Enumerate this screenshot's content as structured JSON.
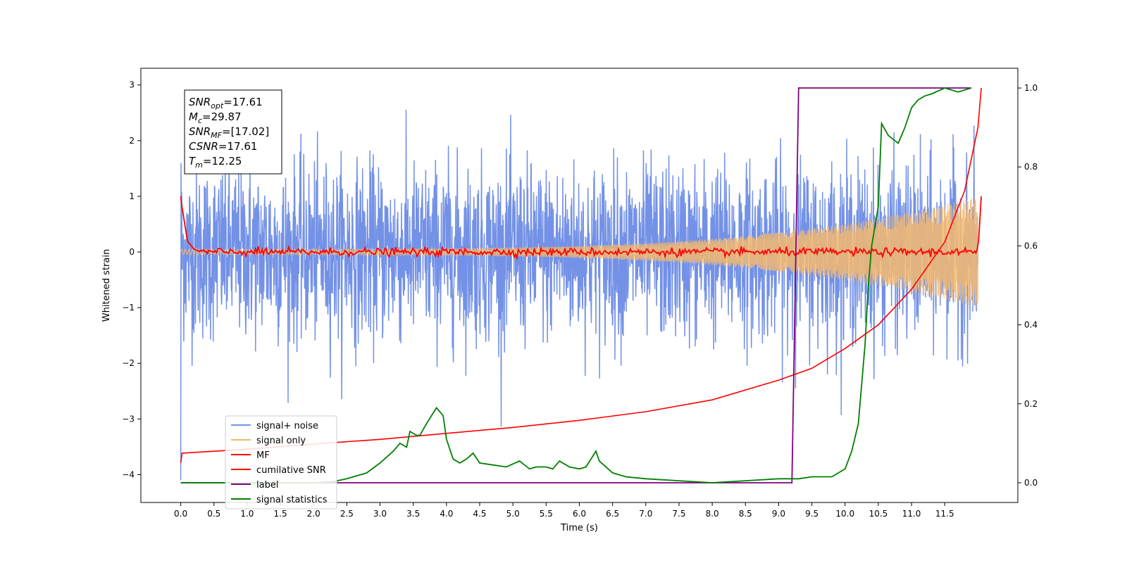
{
  "chart_data": {
    "type": "line",
    "xlabel": "Time (s)",
    "ylabel": "Whitened strain",
    "xlim": [
      -0.6,
      12.6
    ],
    "ylim": [
      -4.5,
      3.3
    ],
    "y2lim": [
      -0.05,
      1.05
    ],
    "x_ticks": [
      "0.0",
      "0.5",
      "1.0",
      "1.5",
      "2.0",
      "2.5",
      "3.0",
      "3.5",
      "4.0",
      "4.5",
      "5.0",
      "5.5",
      "6.0",
      "6.5",
      "7.0",
      "7.5",
      "8.0",
      "8.5",
      "9.0",
      "9.5",
      "10.0",
      "10.5",
      "11.0",
      "11.5"
    ],
    "x_tick_values": [
      0,
      0.5,
      1,
      1.5,
      2,
      2.5,
      3,
      3.5,
      4,
      4.5,
      5,
      5.5,
      6,
      6.5,
      7,
      7.5,
      8,
      8.5,
      9,
      9.5,
      10,
      10.5,
      11,
      11.5
    ],
    "y_ticks": [
      "3",
      "2",
      "1",
      "0",
      "−1",
      "−2",
      "−3",
      "−4"
    ],
    "y_tick_values": [
      3,
      2,
      1,
      0,
      -1,
      -2,
      -3,
      -4
    ],
    "y2_ticks": [
      "1.0",
      "0.8",
      "0.6",
      "0.4",
      "0.2",
      "0.0"
    ],
    "y2_tick_values": [
      1.0,
      0.8,
      0.6,
      0.4,
      0.2,
      0.0
    ],
    "grid": false,
    "legend_placement": "lower-left",
    "annotation_box": {
      "lines": [
        {
          "sym": "SNR",
          "sub": "opt",
          "value": "=17.61"
        },
        {
          "sym": "M",
          "sub": "c",
          "value": "=29.87"
        },
        {
          "sym": "SNR",
          "sub": "MF",
          "value": "=[17.02]"
        },
        {
          "sym": "CSNR",
          "sub": "",
          "value": "=17.61"
        },
        {
          "sym": "T",
          "sub": "m",
          "value": "=12.25"
        }
      ]
    },
    "series": [
      {
        "name": "signal+ noise",
        "axis": "left",
        "color": "#7391e6",
        "description_amplitude": 1.3,
        "x_range": [
          0,
          12
        ]
      },
      {
        "name": "signal only",
        "axis": "left",
        "color": "#f5b96e",
        "x_range": [
          0,
          12
        ],
        "start_amplitude": 0.05,
        "end_amplitude": 1.0
      },
      {
        "name": "MF",
        "axis": "left",
        "color": "#ff0000",
        "x": [
          0,
          0.02,
          0.1,
          0.2,
          0.3,
          12.0,
          12.05
        ],
        "y": [
          1.0,
          0.8,
          0.2,
          0.05,
          0.0,
          0.0,
          1.0
        ]
      },
      {
        "name": "cumilative SNR",
        "axis": "right",
        "color": "#ff0000",
        "x": [
          0,
          0.02,
          1,
          2,
          3,
          4,
          5,
          6,
          7,
          8,
          9,
          9.5,
          10,
          10.5,
          11,
          11.5,
          11.8,
          12.0,
          12.05
        ],
        "y": [
          0.05,
          0.075,
          0.085,
          0.098,
          0.11,
          0.125,
          0.14,
          0.158,
          0.18,
          0.21,
          0.26,
          0.29,
          0.34,
          0.4,
          0.49,
          0.61,
          0.74,
          0.9,
          1.0
        ]
      },
      {
        "name": "label",
        "axis": "right",
        "color": "#800080",
        "x": [
          0,
          9.2,
          9.3,
          11.9
        ],
        "y": [
          0.0,
          0.0,
          1.0,
          1.0
        ]
      },
      {
        "name": "signal statistics",
        "axis": "right",
        "color": "#008000",
        "x": [
          0,
          0.5,
          1,
          1.5,
          2,
          2.3,
          2.5,
          2.8,
          3.0,
          3.2,
          3.3,
          3.4,
          3.45,
          3.55,
          3.6,
          3.7,
          3.85,
          3.95,
          4.0,
          4.1,
          4.2,
          4.3,
          4.4,
          4.5,
          4.7,
          4.9,
          5.1,
          5.25,
          5.35,
          5.5,
          5.6,
          5.7,
          5.85,
          6.0,
          6.1,
          6.25,
          6.3,
          6.5,
          6.7,
          7.0,
          7.5,
          8.0,
          8.5,
          9.0,
          9.3,
          9.5,
          9.8,
          10.0,
          10.1,
          10.2,
          10.3,
          10.35,
          10.4,
          10.5,
          10.55,
          10.65,
          10.8,
          10.9,
          11.0,
          11.1,
          11.2,
          11.3,
          11.5,
          11.7,
          11.9
        ],
        "y": [
          0.0,
          0.0,
          0.0,
          0.0,
          0.0,
          0.003,
          0.01,
          0.025,
          0.05,
          0.08,
          0.1,
          0.09,
          0.13,
          0.12,
          0.12,
          0.15,
          0.19,
          0.17,
          0.11,
          0.06,
          0.05,
          0.06,
          0.075,
          0.05,
          0.045,
          0.04,
          0.055,
          0.035,
          0.04,
          0.04,
          0.035,
          0.055,
          0.04,
          0.035,
          0.04,
          0.08,
          0.055,
          0.025,
          0.015,
          0.01,
          0.005,
          0.0,
          0.005,
          0.01,
          0.01,
          0.015,
          0.015,
          0.035,
          0.08,
          0.15,
          0.35,
          0.5,
          0.6,
          0.7,
          0.91,
          0.88,
          0.86,
          0.9,
          0.95,
          0.97,
          0.98,
          0.985,
          1.0,
          0.99,
          1.0
        ]
      }
    ]
  }
}
